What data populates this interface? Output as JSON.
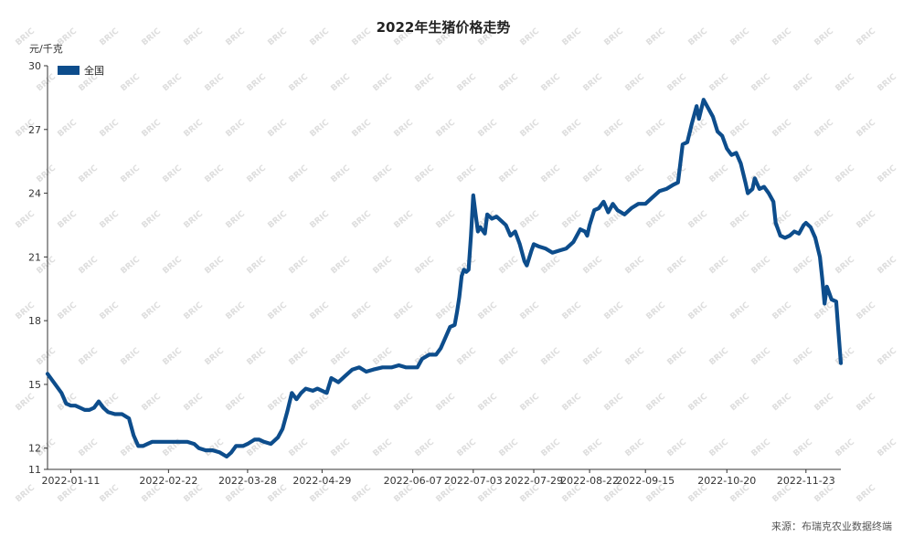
{
  "chart_data": {
    "type": "line",
    "title": "2022年生猪价格走势",
    "ylabel": "元/千克",
    "xlabel": "",
    "ylim": [
      11,
      30
    ],
    "yticks": [
      11,
      12,
      15,
      18,
      21,
      24,
      27,
      30
    ],
    "xticks": [
      "2022-01-11",
      "2022-02-22",
      "2022-03-28",
      "2022-04-29",
      "2022-06-07",
      "2022-07-03",
      "2022-07-29",
      "2022-08-22",
      "2022-09-15",
      "2022-10-20",
      "2022-11-23"
    ],
    "grid": false,
    "legend_position": "top-left",
    "series": [
      {
        "name": "全国",
        "color": "#0d4d8c",
        "points": [
          [
            "2022-01-01",
            15.5
          ],
          [
            "2022-01-03",
            15.2
          ],
          [
            "2022-01-05",
            14.9
          ],
          [
            "2022-01-07",
            14.6
          ],
          [
            "2022-01-09",
            14.1
          ],
          [
            "2022-01-11",
            14.0
          ],
          [
            "2022-01-13",
            14.0
          ],
          [
            "2022-01-15",
            13.9
          ],
          [
            "2022-01-17",
            13.8
          ],
          [
            "2022-01-19",
            13.8
          ],
          [
            "2022-01-21",
            13.9
          ],
          [
            "2022-01-23",
            14.2
          ],
          [
            "2022-01-25",
            13.9
          ],
          [
            "2022-01-27",
            13.7
          ],
          [
            "2022-01-30",
            13.6
          ],
          [
            "2022-02-02",
            13.6
          ],
          [
            "2022-02-05",
            13.4
          ],
          [
            "2022-02-07",
            12.6
          ],
          [
            "2022-02-09",
            12.1
          ],
          [
            "2022-02-11",
            12.1
          ],
          [
            "2022-02-13",
            12.2
          ],
          [
            "2022-02-15",
            12.3
          ],
          [
            "2022-02-18",
            12.3
          ],
          [
            "2022-02-22",
            12.3
          ],
          [
            "2022-02-26",
            12.3
          ],
          [
            "2022-03-02",
            12.3
          ],
          [
            "2022-03-05",
            12.2
          ],
          [
            "2022-03-07",
            12.0
          ],
          [
            "2022-03-10",
            11.9
          ],
          [
            "2022-03-13",
            11.9
          ],
          [
            "2022-03-16",
            11.8
          ],
          [
            "2022-03-19",
            11.6
          ],
          [
            "2022-03-21",
            11.8
          ],
          [
            "2022-03-23",
            12.1
          ],
          [
            "2022-03-26",
            12.1
          ],
          [
            "2022-03-28",
            12.2
          ],
          [
            "2022-03-31",
            12.4
          ],
          [
            "2022-04-02",
            12.4
          ],
          [
            "2022-04-04",
            12.3
          ],
          [
            "2022-04-07",
            12.2
          ],
          [
            "2022-04-10",
            12.5
          ],
          [
            "2022-04-12",
            12.9
          ],
          [
            "2022-04-14",
            13.7
          ],
          [
            "2022-04-16",
            14.6
          ],
          [
            "2022-04-18",
            14.3
          ],
          [
            "2022-04-20",
            14.6
          ],
          [
            "2022-04-22",
            14.8
          ],
          [
            "2022-04-25",
            14.7
          ],
          [
            "2022-04-27",
            14.8
          ],
          [
            "2022-04-29",
            14.7
          ],
          [
            "2022-05-01",
            14.6
          ],
          [
            "2022-05-03",
            15.3
          ],
          [
            "2022-05-06",
            15.1
          ],
          [
            "2022-05-09",
            15.4
          ],
          [
            "2022-05-12",
            15.7
          ],
          [
            "2022-05-15",
            15.8
          ],
          [
            "2022-05-18",
            15.6
          ],
          [
            "2022-05-21",
            15.7
          ],
          [
            "2022-05-25",
            15.8
          ],
          [
            "2022-05-29",
            15.8
          ],
          [
            "2022-06-01",
            15.9
          ],
          [
            "2022-06-04",
            15.8
          ],
          [
            "2022-06-07",
            15.8
          ],
          [
            "2022-06-09",
            15.8
          ],
          [
            "2022-06-11",
            16.2
          ],
          [
            "2022-06-14",
            16.4
          ],
          [
            "2022-06-17",
            16.4
          ],
          [
            "2022-06-19",
            16.7
          ],
          [
            "2022-06-21",
            17.2
          ],
          [
            "2022-06-23",
            17.7
          ],
          [
            "2022-06-25",
            17.8
          ],
          [
            "2022-06-26",
            18.4
          ],
          [
            "2022-06-27",
            19.1
          ],
          [
            "2022-06-28",
            20.1
          ],
          [
            "2022-06-29",
            20.4
          ],
          [
            "2022-06-30",
            20.3
          ],
          [
            "2022-07-01",
            20.4
          ],
          [
            "2022-07-02",
            22.0
          ],
          [
            "2022-07-03",
            23.9
          ],
          [
            "2022-07-04",
            23.0
          ],
          [
            "2022-07-05",
            22.2
          ],
          [
            "2022-07-06",
            22.4
          ],
          [
            "2022-07-08",
            22.1
          ],
          [
            "2022-07-09",
            23.0
          ],
          [
            "2022-07-11",
            22.8
          ],
          [
            "2022-07-13",
            22.9
          ],
          [
            "2022-07-15",
            22.7
          ],
          [
            "2022-07-17",
            22.5
          ],
          [
            "2022-07-19",
            22.0
          ],
          [
            "2022-07-21",
            22.2
          ],
          [
            "2022-07-23",
            21.6
          ],
          [
            "2022-07-25",
            20.8
          ],
          [
            "2022-07-26",
            20.6
          ],
          [
            "2022-07-28",
            21.3
          ],
          [
            "2022-07-29",
            21.6
          ],
          [
            "2022-07-31",
            21.5
          ],
          [
            "2022-08-03",
            21.4
          ],
          [
            "2022-08-06",
            21.2
          ],
          [
            "2022-08-09",
            21.3
          ],
          [
            "2022-08-12",
            21.4
          ],
          [
            "2022-08-15",
            21.7
          ],
          [
            "2022-08-18",
            22.3
          ],
          [
            "2022-08-20",
            22.2
          ],
          [
            "2022-08-21",
            22.0
          ],
          [
            "2022-08-22",
            22.5
          ],
          [
            "2022-08-24",
            23.2
          ],
          [
            "2022-08-26",
            23.3
          ],
          [
            "2022-08-28",
            23.6
          ],
          [
            "2022-08-30",
            23.1
          ],
          [
            "2022-09-01",
            23.5
          ],
          [
            "2022-09-03",
            23.2
          ],
          [
            "2022-09-06",
            23.0
          ],
          [
            "2022-09-09",
            23.3
          ],
          [
            "2022-09-12",
            23.5
          ],
          [
            "2022-09-15",
            23.5
          ],
          [
            "2022-09-18",
            23.8
          ],
          [
            "2022-09-21",
            24.1
          ],
          [
            "2022-09-24",
            24.2
          ],
          [
            "2022-09-27",
            24.4
          ],
          [
            "2022-09-29",
            24.5
          ],
          [
            "2022-10-01",
            26.3
          ],
          [
            "2022-10-03",
            26.4
          ],
          [
            "2022-10-05",
            27.3
          ],
          [
            "2022-10-07",
            28.1
          ],
          [
            "2022-10-08",
            27.5
          ],
          [
            "2022-10-10",
            28.4
          ],
          [
            "2022-10-12",
            28.0
          ],
          [
            "2022-10-14",
            27.6
          ],
          [
            "2022-10-16",
            26.9
          ],
          [
            "2022-10-18",
            26.7
          ],
          [
            "2022-10-20",
            26.1
          ],
          [
            "2022-10-22",
            25.8
          ],
          [
            "2022-10-24",
            25.9
          ],
          [
            "2022-10-26",
            25.4
          ],
          [
            "2022-10-28",
            24.5
          ],
          [
            "2022-10-29",
            24.0
          ],
          [
            "2022-10-31",
            24.2
          ],
          [
            "2022-11-01",
            24.7
          ],
          [
            "2022-11-03",
            24.2
          ],
          [
            "2022-11-05",
            24.3
          ],
          [
            "2022-11-07",
            24.0
          ],
          [
            "2022-11-09",
            23.6
          ],
          [
            "2022-11-10",
            22.6
          ],
          [
            "2022-11-12",
            22.0
          ],
          [
            "2022-11-14",
            21.9
          ],
          [
            "2022-11-16",
            22.0
          ],
          [
            "2022-11-18",
            22.2
          ],
          [
            "2022-11-20",
            22.1
          ],
          [
            "2022-11-22",
            22.5
          ],
          [
            "2022-11-23",
            22.6
          ],
          [
            "2022-11-25",
            22.4
          ],
          [
            "2022-11-27",
            21.9
          ],
          [
            "2022-11-29",
            21.0
          ],
          [
            "2022-11-30",
            20.0
          ],
          [
            "2022-12-01",
            18.8
          ],
          [
            "2022-12-02",
            19.6
          ],
          [
            "2022-12-03",
            19.3
          ],
          [
            "2022-12-04",
            19.0
          ],
          [
            "2022-12-06",
            18.9
          ],
          [
            "2022-12-07",
            17.4
          ],
          [
            "2022-12-08",
            16.0
          ]
        ]
      }
    ],
    "source": "来源：布瑞克农业数据终端",
    "watermark": "BRIC"
  }
}
